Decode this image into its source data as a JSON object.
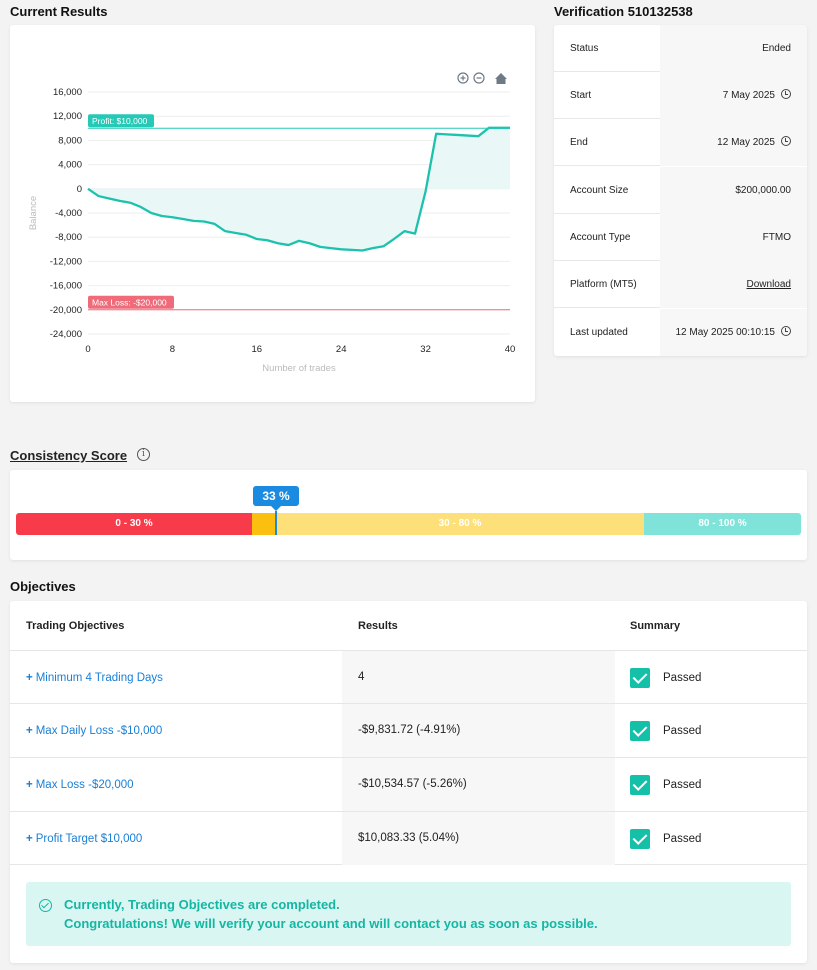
{
  "current_results": {
    "title": "Current Results"
  },
  "chart_data": {
    "type": "line",
    "xlabel": "Number of trades",
    "ylabel": "Balance",
    "xlim": [
      0,
      40
    ],
    "ylim": [
      -24000,
      16000
    ],
    "x_ticks": [
      "0",
      "8",
      "16",
      "24",
      "32",
      "40"
    ],
    "y_ticks": [
      "16,000",
      "12,000",
      "8,000",
      "4,000",
      "0",
      "-4,000",
      "-8,000",
      "-12,000",
      "-16,000",
      "-20,000",
      "-24,000"
    ],
    "grid": true,
    "series": [
      {
        "x": [
          0,
          1,
          2,
          3,
          4,
          5,
          6,
          7,
          8,
          9,
          10,
          11,
          12,
          13,
          14,
          15,
          16,
          17,
          18,
          19,
          20,
          21,
          22,
          23,
          24,
          25,
          26,
          27,
          28,
          29,
          30,
          31,
          32,
          33,
          34,
          35,
          36,
          37,
          38,
          39,
          40
        ],
        "values": [
          0,
          -1200,
          -1600,
          -2000,
          -2300,
          -3000,
          -4000,
          -4500,
          -4700,
          -5000,
          -5300,
          -5400,
          -5800,
          -7000,
          -7300,
          -7600,
          -8300,
          -8500,
          -9000,
          -9300,
          -8600,
          -9000,
          -9600,
          -9800,
          -10000,
          -10100,
          -10200,
          -9800,
          -9500,
          -8300,
          -7000,
          -7400,
          -400,
          9100,
          9000,
          8900,
          8800,
          8700,
          10083,
          10083,
          10083
        ]
      }
    ],
    "annotations": [
      {
        "label": "Profit: $10,000",
        "y": 10000,
        "color": "#25c9b5"
      },
      {
        "label": "Max Loss: -$20,000",
        "y": -20000,
        "color": "#ef6b7a"
      }
    ],
    "toolbar_icons": [
      "zoom-in-icon",
      "zoom-out-icon",
      "home-icon"
    ]
  },
  "verification": {
    "title": "Verification 510132538",
    "rows": [
      {
        "label": "Status",
        "value": "Ended"
      },
      {
        "label": "Start",
        "value": "7 May 2025"
      },
      {
        "label": "End",
        "value": "12 May 2025"
      },
      {
        "label": "Account Size",
        "value": "$200,000.00"
      },
      {
        "label": "Account Type",
        "value": "FTMO"
      },
      {
        "label": "Platform (MT5)",
        "value": "Download"
      },
      {
        "label": "Last updated",
        "value": "12 May 2025 00:10:15"
      }
    ]
  },
  "consistency": {
    "title": "Consistency Score",
    "info_icon": "info-icon",
    "score_label": "33 %",
    "score": 33,
    "segments": [
      {
        "label": "0 - 30 %",
        "color": "#f83b4b"
      },
      {
        "label": "30 - 80 %",
        "color": "#fde07a"
      },
      {
        "label": "80 - 100 %",
        "color": "#7fe3d9"
      }
    ],
    "filled_color": "#fbbf10"
  },
  "objectives": {
    "title": "Objectives",
    "headers": [
      "Trading Objectives",
      "Results",
      "Summary"
    ],
    "rows": [
      {
        "name": "Minimum 4 Trading Days",
        "result": "4",
        "summary": "Passed"
      },
      {
        "name": "Max Daily Loss -$10,000",
        "result": "-$9,831.72 (-4.91%)",
        "summary": "Passed"
      },
      {
        "name": "Max Loss -$20,000",
        "result": "-$10,534.57 (-5.26%)",
        "summary": "Passed"
      },
      {
        "name": "Profit Target $10,000",
        "result": "$10,083.33 (5.04%)",
        "summary": "Passed"
      }
    ],
    "message_line1": "Currently, Trading Objectives are completed.",
    "message_line2": "Congratulations! We will verify your account and will contact you as soon as possible."
  }
}
